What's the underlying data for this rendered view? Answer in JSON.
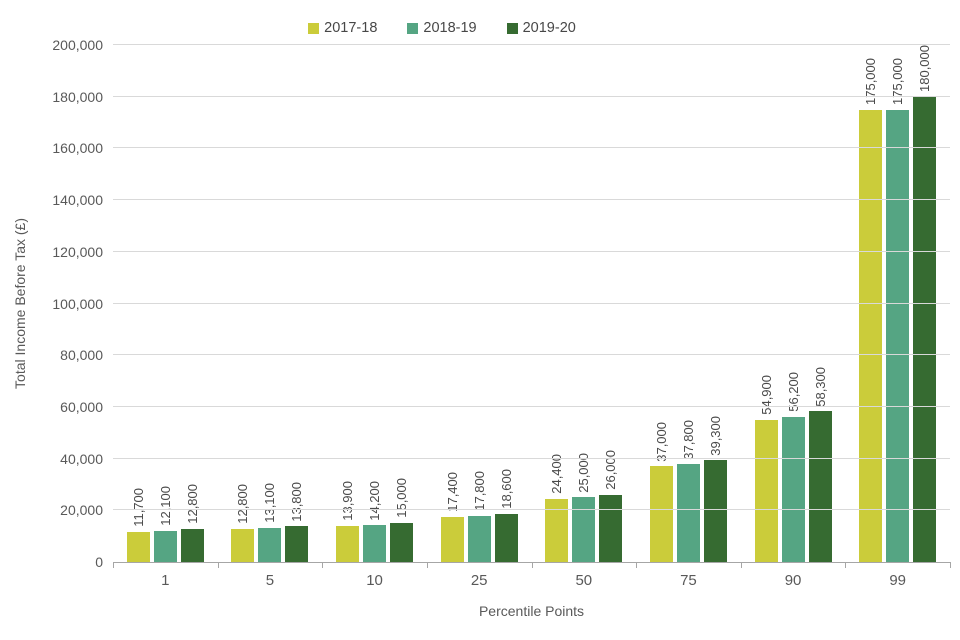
{
  "chart_data": {
    "type": "bar",
    "title": "",
    "xlabel": "Percentile Points",
    "ylabel": "Total Income Before Tax (£)",
    "categories": [
      "1",
      "5",
      "10",
      "25",
      "50",
      "75",
      "90",
      "99"
    ],
    "series": [
      {
        "name": "2017-18",
        "color": "#cbcc3a",
        "values": [
          11700,
          12800,
          13900,
          17400,
          24400,
          37000,
          54900,
          175000
        ],
        "labels": [
          "11,700",
          "12,800",
          "13,900",
          "17,400",
          "24,400",
          "37,000",
          "54,900",
          "175,000"
        ]
      },
      {
        "name": "2018-19",
        "color": "#55a583",
        "values": [
          12100,
          13100,
          14200,
          17800,
          25000,
          37800,
          56200,
          175000
        ],
        "labels": [
          "12,100",
          "13,100",
          "14,200",
          "17,800",
          "25,000",
          "37,800",
          "56,200",
          "175,000"
        ]
      },
      {
        "name": "2019-20",
        "color": "#366b31",
        "values": [
          12800,
          13800,
          15000,
          18600,
          26000,
          39300,
          58300,
          180000
        ],
        "labels": [
          "12,800",
          "13,800",
          "15,000",
          "18,600",
          "26,000",
          "39,300",
          "58,300",
          "180,000"
        ]
      }
    ],
    "ylim": [
      0,
      200000
    ],
    "ytick_step": 20000,
    "ytick_labels": [
      "0",
      "20,000",
      "40,000",
      "60,000",
      "80,000",
      "100,000",
      "120,000",
      "140,000",
      "160,000",
      "180,000",
      "200,000"
    ],
    "grid": true,
    "legend_position": "top",
    "axis_color": "#a6a6a6",
    "gridline_color": "#d9d9d9",
    "text_color": "#595959"
  }
}
